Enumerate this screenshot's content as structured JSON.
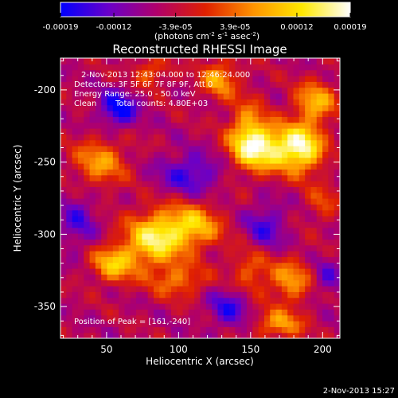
{
  "chart_data": {
    "type": "heatmap",
    "title": "Reconstructed RHESSI Image",
    "xlabel": "Heliocentric X (arcsec)",
    "ylabel": "Heliocentric Y (arcsec)",
    "xlim": [
      18,
      212
    ],
    "ylim": [
      -372,
      -178
    ],
    "x_ticks": [
      50,
      100,
      150,
      200
    ],
    "y_ticks": [
      -200,
      -250,
      -300,
      -350
    ],
    "colorbar": {
      "range": [
        -0.00019,
        0.00019
      ],
      "tick_values": [
        -0.00019,
        -0.00012,
        -3.9e-05,
        3.9e-05,
        0.00012,
        0.00019
      ],
      "tick_labels": [
        "-0.00019",
        "-0.00012",
        "-3.9e-05",
        "3.9e-05",
        "0.00012",
        "0.00019"
      ],
      "units_main": "(photons cm",
      "units_exp1": "-2",
      "units_mid": " s",
      "units_exp2": "-1",
      "units_end": " asec",
      "units_exp3": "-2",
      "units_close": ")",
      "colors": [
        "#0000ff",
        "#6a00c8",
        "#b0006a",
        "#e02000",
        "#ff9400",
        "#ffe800",
        "#ffffff"
      ]
    },
    "annotations": [
      "2-Nov-2013 12:43:04.000 to 12:46:24.000",
      "Detectors: 3F 5F 6F 7F 8F 9F, Att 0",
      "Energy Range: 25.0 - 50.0 keV",
      "Clean",
      "Total counts: 4.80E+03"
    ],
    "peak_label": "Position of Peak = [161,-240]",
    "peak": [
      161,
      -240
    ],
    "sources": [
      {
        "x": 163,
        "y": -240,
        "amp": 0.00019,
        "sx": 16,
        "sy": 11
      },
      {
        "x": 187,
        "y": -240,
        "amp": 0.00017,
        "sx": 10,
        "sy": 12
      },
      {
        "x": 148,
        "y": -230,
        "amp": 0.00013,
        "sx": 9,
        "sy": 16
      },
      {
        "x": 195,
        "y": -208,
        "amp": 0.00014,
        "sx": 10,
        "sy": 10
      },
      {
        "x": 128,
        "y": -192,
        "amp": 0.00013,
        "sx": 9,
        "sy": 9
      },
      {
        "x": 45,
        "y": -250,
        "amp": 0.00012,
        "sx": 13,
        "sy": 12
      },
      {
        "x": 83,
        "y": -303,
        "amp": 0.00019,
        "sx": 14,
        "sy": 13
      },
      {
        "x": 110,
        "y": -294,
        "amp": 0.00015,
        "sx": 14,
        "sy": 11
      },
      {
        "x": 55,
        "y": -320,
        "amp": 0.00015,
        "sx": 11,
        "sy": 9
      },
      {
        "x": 100,
        "y": -332,
        "amp": 0.0001,
        "sx": 14,
        "sy": 8
      },
      {
        "x": 150,
        "y": -325,
        "amp": 9e-05,
        "sx": 10,
        "sy": 12
      },
      {
        "x": 178,
        "y": -332,
        "amp": 0.00012,
        "sx": 10,
        "sy": 11
      },
      {
        "x": 170,
        "y": -362,
        "amp": 0.00012,
        "sx": 12,
        "sy": 7
      },
      {
        "x": 80,
        "y": -188,
        "amp": 9e-05,
        "sx": 9,
        "sy": 7
      },
      {
        "x": 200,
        "y": -278,
        "amp": 7e-05,
        "sx": 8,
        "sy": 9
      },
      {
        "x": 58,
        "y": -213,
        "amp": -0.00014,
        "sx": 9,
        "sy": 9
      },
      {
        "x": 108,
        "y": -258,
        "amp": -0.0001,
        "sx": 15,
        "sy": 10
      },
      {
        "x": 135,
        "y": -350,
        "amp": -0.0001,
        "sx": 10,
        "sy": 10
      },
      {
        "x": 30,
        "y": -290,
        "amp": -8e-05,
        "sx": 9,
        "sy": 14
      },
      {
        "x": 160,
        "y": -295,
        "amp": -9e-05,
        "sx": 10,
        "sy": 12
      },
      {
        "x": 203,
        "y": -330,
        "amp": -7e-05,
        "sx": 7,
        "sy": 9
      }
    ]
  },
  "footer": {
    "date": "2-Nov-2013 15:27"
  }
}
